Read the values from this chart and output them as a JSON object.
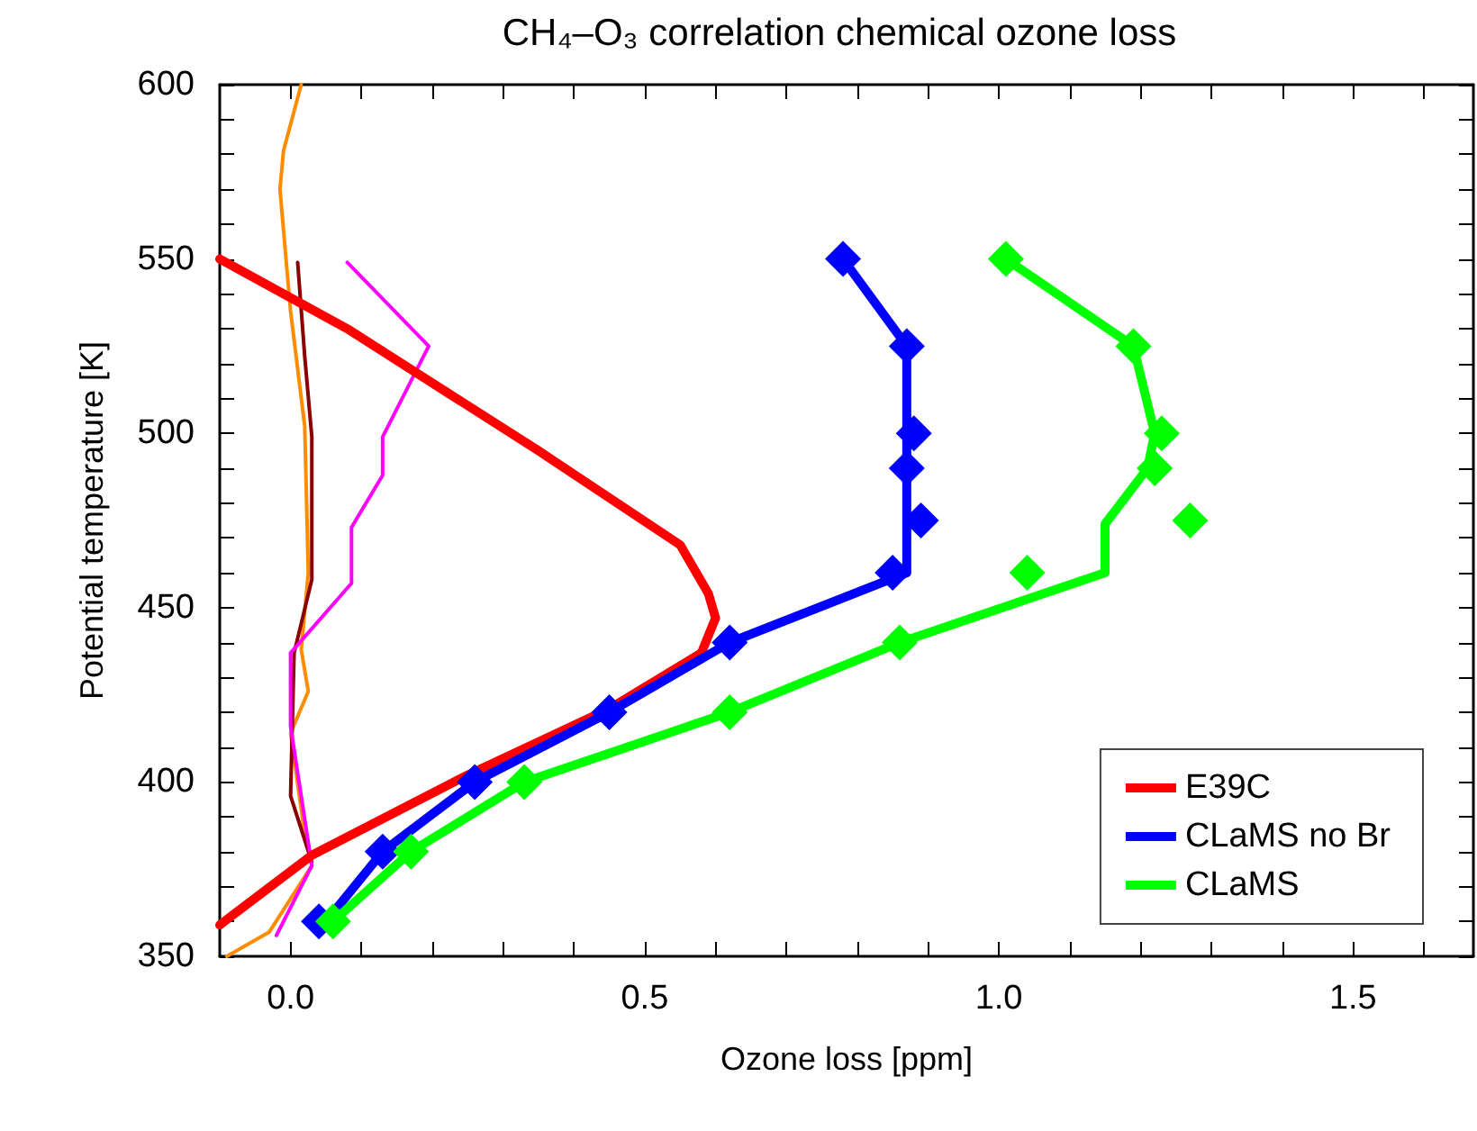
{
  "chart_data": {
    "type": "line",
    "title": "CH₄–O₃ correlation chemical ozone loss",
    "xlabel": "Ozone loss [ppm]",
    "ylabel": "Potential temperature [K]",
    "xlim": [
      -0.1,
      1.67
    ],
    "ylim": [
      350,
      600
    ],
    "xticks": [
      {
        "value": 0,
        "label": "0.0"
      },
      {
        "value": 0.1,
        "label": null
      },
      {
        "value": 0.2,
        "label": null
      },
      {
        "value": 0.3,
        "label": null
      },
      {
        "value": 0.4,
        "label": null
      },
      {
        "value": 0.5,
        "label": "0.5"
      },
      {
        "value": 0.6,
        "label": null
      },
      {
        "value": 0.7,
        "label": null
      },
      {
        "value": 0.8,
        "label": null
      },
      {
        "value": 0.9,
        "label": null
      },
      {
        "value": 1,
        "label": "1.0"
      },
      {
        "value": 1.1,
        "label": null
      },
      {
        "value": 1.2,
        "label": null
      },
      {
        "value": 1.3,
        "label": null
      },
      {
        "value": 1.4,
        "label": null
      },
      {
        "value": 1.5,
        "label": "1.5"
      },
      {
        "value": 1.6,
        "label": null
      }
    ],
    "yticks": [
      350,
      {
        "value": 360,
        "label": null
      },
      {
        "value": 370,
        "label": null
      },
      {
        "value": 380,
        "label": null
      },
      {
        "value": 390,
        "label": null
      },
      400,
      {
        "value": 410,
        "label": null
      },
      {
        "value": 420,
        "label": null
      },
      {
        "value": 430,
        "label": null
      },
      {
        "value": 440,
        "label": null
      },
      450,
      {
        "value": 460,
        "label": null
      },
      {
        "value": 470,
        "label": null
      },
      {
        "value": 480,
        "label": null
      },
      {
        "value": 490,
        "label": null
      },
      500,
      {
        "value": 510,
        "label": null
      },
      {
        "value": 520,
        "label": null
      },
      {
        "value": 530,
        "label": null
      },
      {
        "value": 540,
        "label": null
      },
      550,
      {
        "value": 560,
        "label": null
      },
      {
        "value": 570,
        "label": null
      },
      {
        "value": 580,
        "label": null
      },
      {
        "value": 590,
        "label": null
      },
      600
    ],
    "grid": false,
    "legend": "bottom right",
    "series": [
      {
        "color": "#ff8c00",
        "marker": "none",
        "x": [
          0.015,
          -0.01,
          -0.015,
          0,
          0.02,
          0.025,
          0.015,
          0.025,
          0,
          0.02,
          0.03,
          -0.03,
          -0.09
        ],
        "values": [
          600,
          581,
          570,
          535,
          502,
          460,
          438,
          426,
          414,
          385,
          376,
          357,
          350
        ]
      },
      {
        "color": "#8b0000",
        "marker": "none",
        "x": [
          0.01,
          0.02,
          0.03,
          0.03,
          0.005,
          0,
          0.03
        ],
        "values": [
          549,
          522,
          499,
          458,
          437,
          396,
          377
        ]
      },
      {
        "color": "#ff00ff",
        "marker": "none",
        "x": [
          0.08,
          0.195,
          0.13,
          0.13,
          0.086,
          0.086,
          0,
          0,
          0.03,
          -0.02
        ],
        "values": [
          549,
          525,
          499,
          488,
          473,
          457,
          437,
          416,
          376,
          356
        ]
      },
      {
        "name": "E39C",
        "color": "#ff0000",
        "marker": "none",
        "x": [
          -0.1,
          0.08,
          0.35,
          0.55,
          0.59,
          0.6,
          0.58,
          0.45,
          0.25,
          0.03,
          -0.1
        ],
        "values": [
          550,
          530,
          495,
          468,
          454,
          447,
          437,
          421,
          402,
          379,
          359
        ]
      },
      {
        "name": "CLaMS no Br",
        "color": "#0000ff",
        "marker": "none",
        "x": [
          0.78,
          0.87,
          0.87,
          0.87,
          0.87,
          0.87,
          0.62,
          0.45,
          0.26,
          0.13,
          0.05
        ],
        "values": [
          550,
          525,
          500,
          490,
          475,
          460,
          440,
          420,
          400,
          380,
          360
        ]
      },
      {
        "type": "scatter",
        "color": "#0000ff",
        "marker": "diamond",
        "x": [
          0.78,
          0.87,
          0.88,
          0.87,
          0.89,
          0.85,
          0.62,
          0.45,
          0.26,
          0.13,
          0.04
        ],
        "values": [
          550,
          525,
          500,
          490,
          475,
          460,
          440,
          420,
          400,
          380,
          360
        ]
      },
      {
        "name": "CLaMS",
        "color": "#00ff00",
        "marker": "none",
        "x": [
          1.01,
          1.19,
          1.22,
          1.21,
          1.15,
          1.15,
          0.86,
          0.62,
          0.33,
          0.17,
          0.06
        ],
        "values": [
          550,
          525,
          500,
          490,
          474,
          460,
          440,
          420,
          400,
          380,
          360
        ]
      },
      {
        "type": "scatter",
        "color": "#00ff00",
        "marker": "diamond",
        "x": [
          1.01,
          1.19,
          1.23,
          1.22,
          1.27,
          1.04,
          0.86,
          0.62,
          0.33,
          0.17,
          0.06
        ],
        "values": [
          550,
          525,
          500,
          490,
          475,
          460,
          440,
          420,
          400,
          380,
          360
        ]
      }
    ]
  }
}
